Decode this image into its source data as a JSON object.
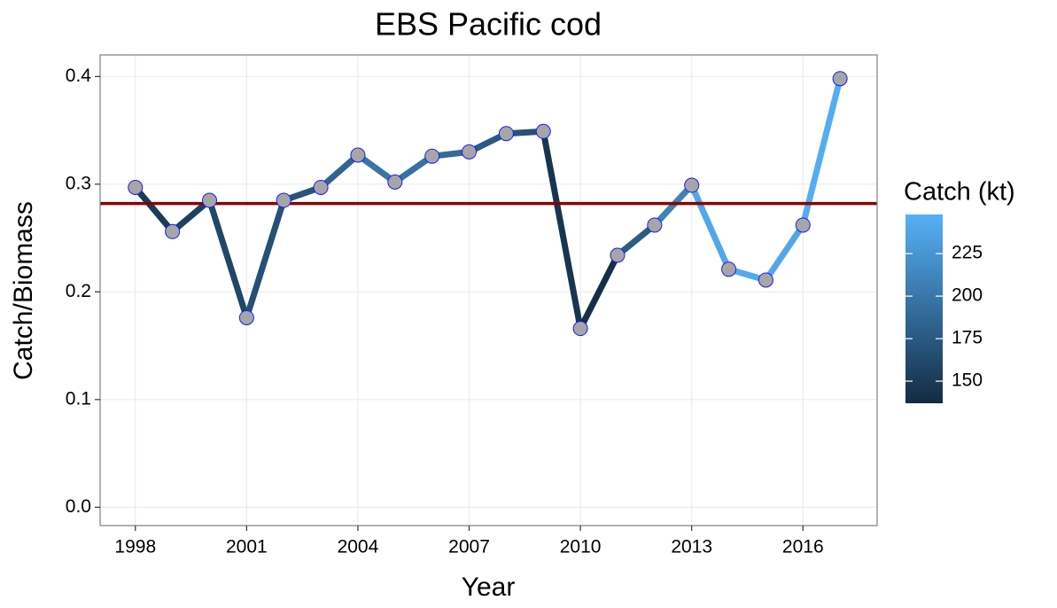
{
  "chart_data": {
    "type": "line",
    "title": "EBS Pacific cod",
    "x_label": "Year",
    "y_label": "Catch/Biomass",
    "x": [
      1998,
      1999,
      2000,
      2001,
      2002,
      2003,
      2004,
      2005,
      2006,
      2007,
      2008,
      2009,
      2010,
      2011,
      2012,
      2013,
      2014,
      2015,
      2016,
      2017
    ],
    "values": [
      0.297,
      0.256,
      0.285,
      0.176,
      0.285,
      0.297,
      0.327,
      0.302,
      0.326,
      0.33,
      0.347,
      0.349,
      0.166,
      0.234,
      0.262,
      0.299,
      0.221,
      0.211,
      0.262,
      0.398
    ],
    "catch": [
      150,
      155,
      160,
      168,
      170,
      185,
      198,
      195,
      190,
      175,
      168,
      145,
      140,
      178,
      210,
      240,
      242,
      240,
      245,
      245
    ],
    "xlim": [
      1997.05,
      2018.0
    ],
    "xticks": [
      1998,
      2001,
      2004,
      2007,
      2010,
      2013,
      2016
    ],
    "ylim": [
      -0.017,
      0.42
    ],
    "yticks": [
      {
        "value": 0,
        "label": "0.0"
      },
      0.1,
      0.2,
      0.3,
      0.4
    ],
    "grid": true,
    "hline": 0.282,
    "hline_color": "#8b0000",
    "point_color": "#a6a6a6",
    "point_edge": "#1a1aff",
    "legend_title": "Catch (kt)",
    "color_low": "#132b43",
    "color_high": "#56b1f7",
    "clim": [
      137,
      248
    ],
    "colorbar_ticks": [
      150,
      175,
      200,
      225
    ]
  }
}
